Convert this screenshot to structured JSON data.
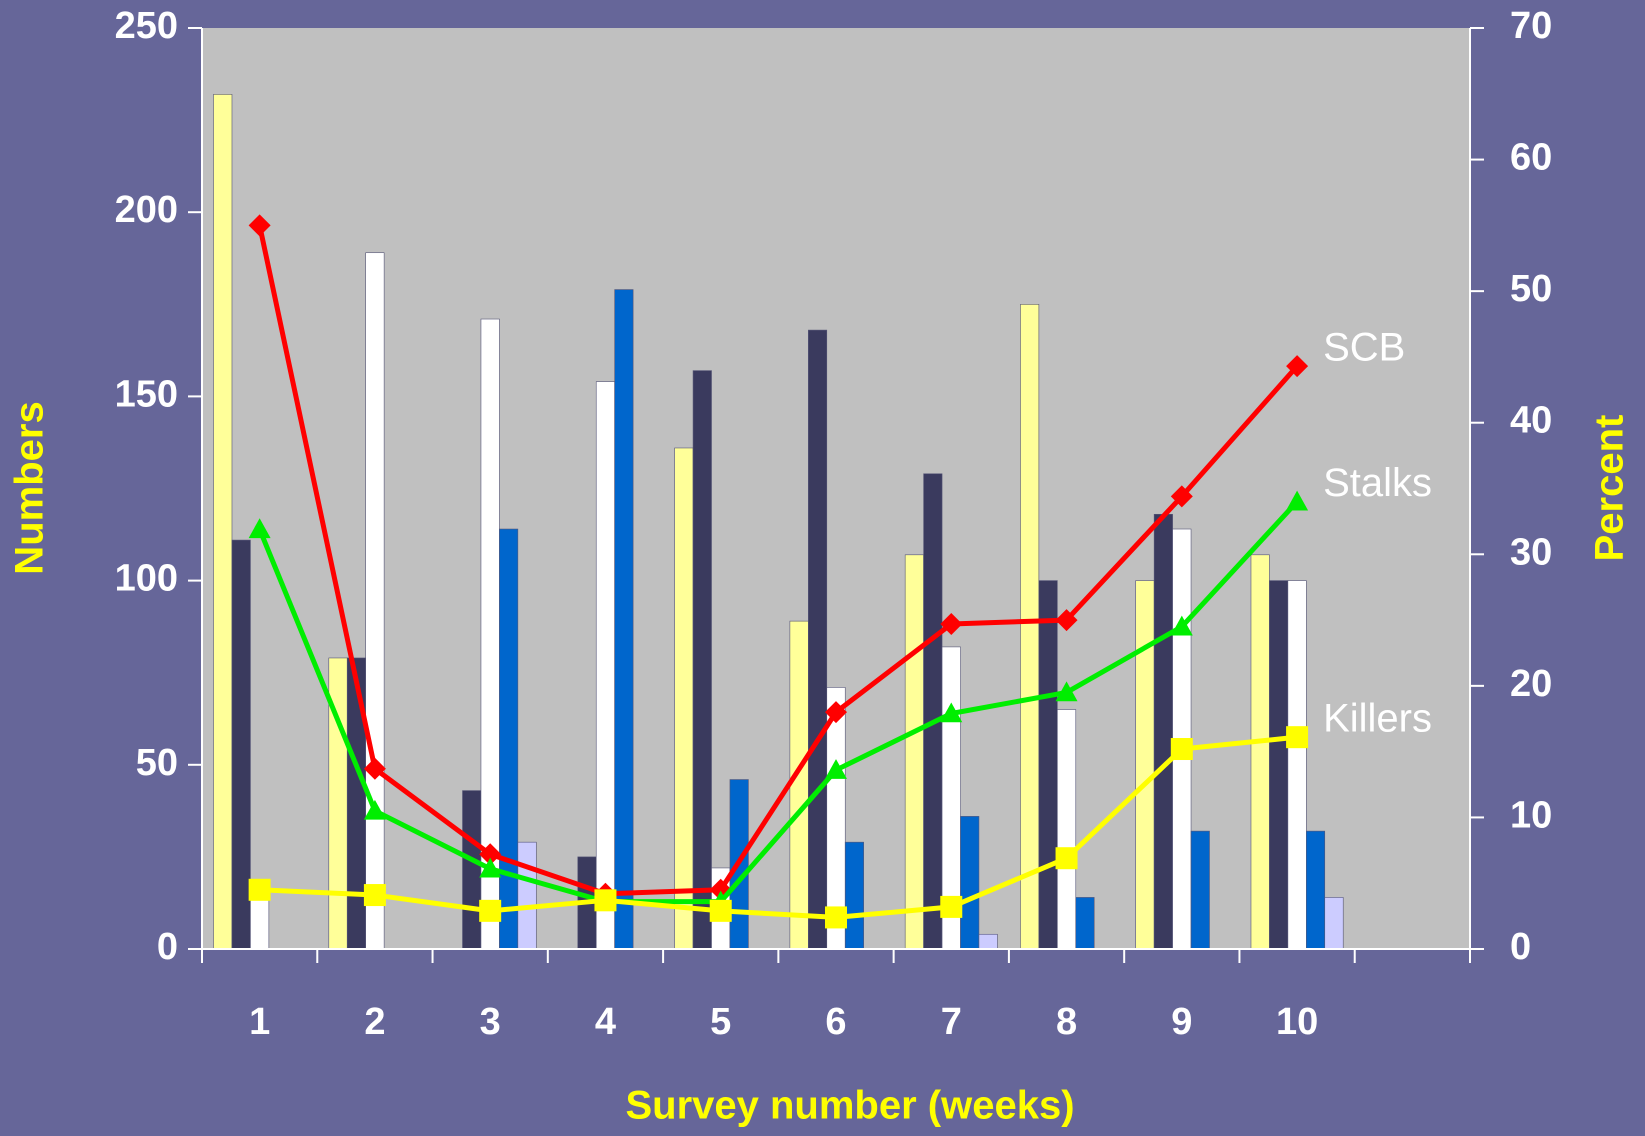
{
  "chart_data": {
    "type": "bar_line",
    "xlabel": "Survey number (weeks)",
    "ylabel": "Numbers",
    "y2label": "Percent",
    "categories": [
      "1",
      "2",
      "3",
      "4",
      "5",
      "6",
      "7",
      "8",
      "9",
      "10",
      null
    ],
    "ylim": [
      0,
      250
    ],
    "yticks": [
      0,
      50,
      100,
      150,
      200,
      250
    ],
    "y2lim": [
      0,
      70
    ],
    "y2ticks": [
      0,
      10,
      20,
      30,
      40,
      50,
      60,
      70
    ],
    "series": [
      {
        "type": "bar",
        "color": "#ffff99",
        "values": [
          232,
          79,
          0,
          0,
          136,
          89,
          107,
          175,
          100,
          107,
          null
        ]
      },
      {
        "type": "bar",
        "color": "#3a3a5e",
        "values": [
          111,
          79,
          43,
          25,
          157,
          168,
          129,
          100,
          118,
          100,
          null
        ]
      },
      {
        "type": "bar",
        "color": "#ffffff",
        "values": [
          15,
          189,
          171,
          154,
          22,
          71,
          82,
          65,
          114,
          100,
          null
        ]
      },
      {
        "type": "bar",
        "color": "#0066cc",
        "values": [
          0,
          0,
          114,
          179,
          46,
          29,
          36,
          14,
          32,
          32,
          null
        ]
      },
      {
        "type": "bar",
        "color": "#ccccff",
        "values": [
          0,
          0,
          29,
          0,
          0,
          0,
          4,
          0,
          0,
          14,
          null
        ]
      },
      {
        "type": "line",
        "axis": "y2",
        "name": "SCB",
        "color": "#ff0000",
        "marker": "diamond",
        "values": [
          55,
          13.7,
          7.2,
          4.2,
          4.5,
          18,
          24.7,
          25,
          34.4,
          44.3,
          null
        ]
      },
      {
        "type": "line",
        "axis": "y2",
        "name": "Stalks",
        "color": "#00ee00",
        "marker": "triangle",
        "values": [
          31.9,
          10.5,
          6.1,
          3.6,
          3.6,
          13.6,
          17.9,
          19.5,
          24.5,
          34,
          null
        ]
      },
      {
        "type": "line",
        "axis": "y2",
        "name": "Killers",
        "color": "#ffff00",
        "marker": "square",
        "values": [
          4.5,
          4.1,
          2.9,
          3.7,
          2.9,
          2.4,
          3.2,
          6.9,
          15.2,
          16.1,
          null
        ]
      }
    ],
    "plot_background": "#c0c0c0",
    "background": "#666699"
  }
}
